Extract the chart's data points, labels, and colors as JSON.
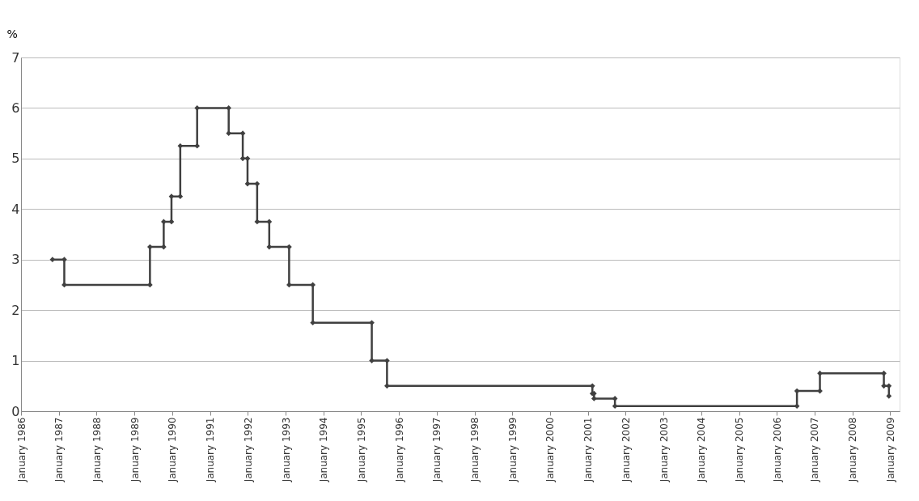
{
  "chart_data": {
    "type": "line",
    "ylabel": "%",
    "x": [
      "1986-11-01",
      "1987-02-23",
      "1987-02-23",
      "1989-05-31",
      "1989-05-31",
      "1989-10-11",
      "1989-10-11",
      "1989-12-25",
      "1989-12-25",
      "1990-03-20",
      "1990-03-20",
      "1990-08-30",
      "1990-08-30",
      "1991-07-01",
      "1991-07-01",
      "1991-11-14",
      "1991-11-14",
      "1991-12-30",
      "1991-12-30",
      "1992-04-01",
      "1992-04-01",
      "1992-07-27",
      "1992-07-27",
      "1993-02-04",
      "1993-02-04",
      "1993-09-21",
      "1993-09-21",
      "1995-04-14",
      "1995-04-14",
      "1995-09-08",
      "1995-09-08",
      "2001-02-13",
      "2001-02-13",
      "2001-03-01",
      "2001-03-01",
      "2001-09-19",
      "2001-09-19",
      "2006-07-14",
      "2006-07-14",
      "2007-02-21",
      "2007-02-21",
      "2008-10-31",
      "2008-10-31",
      "2008-12-19",
      "2008-12-19"
    ],
    "series": [
      {
        "color": "#404040",
        "values": [
          3,
          3,
          2.5,
          2.5,
          3.25,
          3.25,
          3.75,
          3.75,
          4.25,
          4.25,
          5.25,
          5.25,
          6,
          6,
          5.5,
          5.5,
          5,
          5,
          4.5,
          4.5,
          3.75,
          3.75,
          3.25,
          3.25,
          2.5,
          2.5,
          1.75,
          1.75,
          1,
          1,
          0.5,
          0.5,
          0.35,
          0.35,
          0.25,
          0.25,
          0.1,
          0.1,
          0.4,
          0.4,
          0.75,
          0.75,
          0.5,
          0.5,
          0.3
        ]
      }
    ],
    "xlim": [
      "1986-01-01",
      "2009-04-01"
    ],
    "xticks": [
      {
        "value": "1986-01-01",
        "label": "January 1986"
      },
      {
        "value": "1987-01-01",
        "label": "January 1987"
      },
      {
        "value": "1988-01-01",
        "label": "January 1988"
      },
      {
        "value": "1989-01-01",
        "label": "January 1989"
      },
      {
        "value": "1990-01-01",
        "label": "January 1990"
      },
      {
        "value": "1991-01-01",
        "label": "January 1991"
      },
      {
        "value": "1992-01-01",
        "label": "January 1992"
      },
      {
        "value": "1993-01-01",
        "label": "January 1993"
      },
      {
        "value": "1994-01-01",
        "label": "January 1994"
      },
      {
        "value": "1995-01-01",
        "label": "January 1995"
      },
      {
        "value": "1996-01-01",
        "label": "January 1996"
      },
      {
        "value": "1997-01-01",
        "label": "January 1997"
      },
      {
        "value": "1998-01-01",
        "label": "January 1998"
      },
      {
        "value": "1999-01-01",
        "label": "January 1999"
      },
      {
        "value": "2000-01-01",
        "label": "January 2000"
      },
      {
        "value": "2001-01-01",
        "label": "January 2001"
      },
      {
        "value": "2002-01-01",
        "label": "January 2002"
      },
      {
        "value": "2003-01-01",
        "label": "January 2003"
      },
      {
        "value": "2004-01-01",
        "label": "January 2004"
      },
      {
        "value": "2005-01-01",
        "label": "January 2005"
      },
      {
        "value": "2006-01-01",
        "label": "January 2006"
      },
      {
        "value": "2007-01-01",
        "label": "January 2007"
      },
      {
        "value": "2008-01-01",
        "label": "January 2008"
      },
      {
        "value": "2009-01-01",
        "label": "January 2009"
      }
    ],
    "ylim": [
      0,
      7
    ],
    "yticks": [
      0,
      1,
      2,
      3,
      4,
      5,
      6,
      7
    ],
    "grid": "y",
    "legend": false,
    "marker": "diamond",
    "line_style": "solid"
  }
}
